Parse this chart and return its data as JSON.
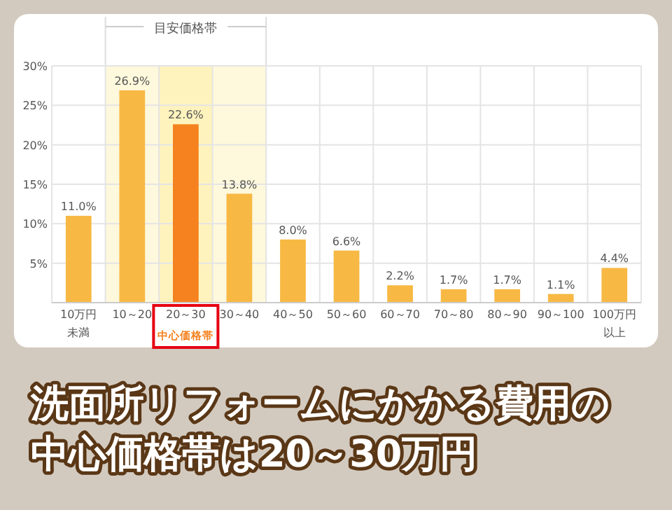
{
  "chart_data": {
    "type": "bar",
    "title": "洗面所リフォームにかかる費用の中心価格帯は20～30万円",
    "categories": [
      "10万円未満",
      "10～20",
      "20～30",
      "30～40",
      "40～50",
      "50～60",
      "60～70",
      "70～80",
      "80～90",
      "90～100",
      "100万円以上"
    ],
    "values": [
      11.0,
      26.9,
      22.6,
      13.8,
      8.0,
      6.6,
      2.2,
      1.7,
      1.7,
      1.1,
      4.4
    ],
    "colors": [
      "#f7b944",
      "#f7b944",
      "#f5821f",
      "#f7b944",
      "#f7b944",
      "#f7b944",
      "#f7b944",
      "#f7b944",
      "#f7b944",
      "#f7b944",
      "#f7b944"
    ],
    "value_labels": [
      "11.0%",
      "26.9%",
      "22.6%",
      "13.8%",
      "8.0%",
      "6.6%",
      "2.2%",
      "1.7%",
      "1.7%",
      "1.1%",
      "4.4%"
    ],
    "ylim": [
      0,
      30
    ],
    "yticks": [
      {
        "value": 5,
        "label": "5%"
      },
      {
        "value": 10,
        "label": "10%"
      },
      {
        "value": 15,
        "label": "15%"
      },
      {
        "value": 20,
        "label": "20%"
      },
      {
        "value": 25,
        "label": "25%"
      },
      {
        "value": 30,
        "label": "30%"
      }
    ],
    "grid": true,
    "bands": [
      {
        "axis": "x",
        "from": "10～20",
        "to": "30～40",
        "label": "目安価格帯",
        "color": "#fef8dc"
      },
      {
        "axis": "x",
        "from": "20～30",
        "to": "20～30",
        "label": "中心価格帯",
        "color": "#fff3bd"
      }
    ]
  }
}
